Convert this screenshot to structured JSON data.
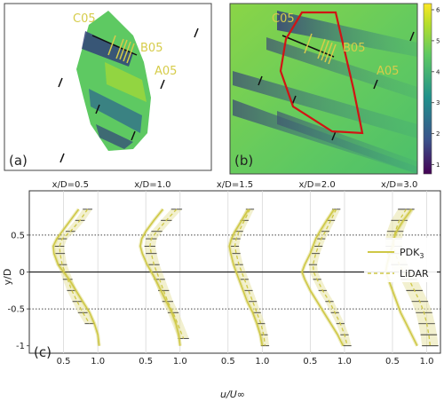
{
  "panel_a": {
    "tag": "(a)",
    "labels": [
      "C05",
      "B05",
      "A05"
    ],
    "label_color": "#d6cc4a"
  },
  "panel_b": {
    "tag": "(b)",
    "labels": [
      "C05",
      "B05",
      "A05"
    ],
    "label_color": "#d6cc4a",
    "outline_color": "#d11414",
    "colorbar": {
      "ticks": [
        "1",
        "2",
        "3",
        "4",
        "5",
        "6"
      ],
      "range": [
        0.7,
        6.2
      ],
      "colors": [
        "#440154",
        "#3b528b",
        "#21918c",
        "#5ec962",
        "#b5de2b",
        "#fde725"
      ]
    }
  },
  "panel_c": {
    "tag": "(c)",
    "ylabel": "y/D",
    "xlabel": "u/U∞",
    "yticks": [
      "0.5",
      "0",
      "-0.5",
      "-1"
    ],
    "xtick_labels": [
      "0.5",
      "1.0"
    ],
    "legend": [
      "PDK",
      "LiDAR"
    ],
    "legend_sub": "3"
  },
  "chart_data": {
    "type": "line",
    "xlabel": "u/U∞",
    "ylabel": "y/D",
    "ylim": [
      -1.1,
      1.1
    ],
    "xlim_each": [
      0.0,
      1.2
    ],
    "reference_lines_y": [
      0.5,
      -0.5
    ],
    "series_color": "#cfc846",
    "panels": [
      {
        "title": "x/D=0.5",
        "y": [
          0.85,
          0.7,
          0.55,
          0.45,
          0.35,
          0.25,
          0.1,
          0.0,
          -0.1,
          -0.25,
          -0.4,
          -0.55,
          -0.7,
          -0.85,
          -1.0
        ],
        "pdk": [
          0.72,
          0.6,
          0.48,
          0.4,
          0.35,
          0.36,
          0.42,
          0.5,
          0.58,
          0.68,
          0.78,
          0.88,
          0.95,
          1.0,
          1.02
        ],
        "lidar": [
          0.85,
          0.74,
          0.6,
          0.48,
          0.44,
          0.45,
          0.48,
          0.52,
          0.56,
          0.62,
          0.7,
          0.78,
          0.88
        ],
        "lidar_y": [
          0.85,
          0.7,
          0.55,
          0.45,
          0.35,
          0.25,
          0.1,
          0.0,
          -0.1,
          -0.25,
          -0.4,
          -0.55,
          -0.7
        ],
        "band": 0.07
      },
      {
        "title": "x/D=1.0",
        "y": [
          0.85,
          0.7,
          0.55,
          0.45,
          0.35,
          0.25,
          0.1,
          0.0,
          -0.1,
          -0.25,
          -0.4,
          -0.55,
          -0.7,
          -0.85,
          -1.0
        ],
        "pdk": [
          0.75,
          0.62,
          0.5,
          0.44,
          0.42,
          0.45,
          0.52,
          0.58,
          0.64,
          0.72,
          0.8,
          0.88,
          0.94,
          0.98,
          1.0
        ],
        "lidar": [
          0.95,
          0.8,
          0.66,
          0.58,
          0.56,
          0.58,
          0.62,
          0.66,
          0.7,
          0.76,
          0.82,
          0.9,
          1.05
        ],
        "lidar_y": [
          0.85,
          0.7,
          0.55,
          0.45,
          0.35,
          0.25,
          0.1,
          0.0,
          -0.1,
          -0.25,
          -0.4,
          -0.55,
          -0.9
        ],
        "band": 0.08
      },
      {
        "title": "x/D=1.5",
        "y": [
          0.85,
          0.7,
          0.55,
          0.45,
          0.35,
          0.25,
          0.1,
          0.0,
          -0.1,
          -0.25,
          -0.4,
          -0.55,
          -0.7,
          -0.85,
          -1.0
        ],
        "pdk": [
          0.8,
          0.7,
          0.6,
          0.55,
          0.52,
          0.54,
          0.58,
          0.62,
          0.66,
          0.72,
          0.78,
          0.86,
          0.92,
          0.97,
          1.0
        ],
        "lidar": [
          0.82,
          0.74,
          0.66,
          0.62,
          0.6,
          0.62,
          0.66,
          0.7,
          0.74,
          0.8,
          0.86,
          0.92,
          0.98,
          1.02,
          1.04
        ],
        "lidar_y": [
          0.85,
          0.7,
          0.55,
          0.45,
          0.35,
          0.25,
          0.1,
          0.0,
          -0.1,
          -0.25,
          -0.4,
          -0.55,
          -0.7,
          -0.85,
          -1.0
        ],
        "band": 0.06
      },
      {
        "title": "x/D=2.0",
        "y": [
          0.85,
          0.7,
          0.55,
          0.45,
          0.35,
          0.25,
          0.1,
          0.0,
          -0.1,
          -0.25,
          -0.4,
          -0.55,
          -0.7,
          -0.85,
          -1.0
        ],
        "pdk": [
          0.85,
          0.74,
          0.64,
          0.58,
          0.54,
          0.5,
          0.42,
          0.38,
          0.42,
          0.5,
          0.6,
          0.7,
          0.8,
          0.9,
          0.98
        ],
        "lidar": [
          0.88,
          0.8,
          0.72,
          0.66,
          0.62,
          0.58,
          0.54,
          0.55,
          0.6,
          0.68,
          0.78,
          0.86,
          0.94,
          1.0,
          1.04
        ],
        "lidar_y": [
          0.85,
          0.7,
          0.55,
          0.45,
          0.35,
          0.25,
          0.1,
          0.0,
          -0.1,
          -0.25,
          -0.4,
          -0.55,
          -0.7,
          -0.85,
          -1.0
        ],
        "band": 0.06
      },
      {
        "title": "x/D=3.0",
        "y": [
          0.85,
          0.7,
          0.55,
          0.45,
          0.35,
          0.25,
          0.1,
          0.0,
          -0.1,
          -0.25,
          -0.4,
          -0.55,
          -0.7,
          -0.85,
          -1.0
        ],
        "pdk": [
          0.78,
          0.66,
          0.56,
          0.52,
          0.5,
          0.46,
          0.42,
          0.4,
          0.44,
          0.5,
          0.56,
          0.62,
          0.7,
          0.78,
          0.86
        ],
        "lidar": [
          0.7,
          0.6,
          0.54,
          0.52,
          0.52,
          0.54,
          0.6,
          0.66,
          0.74,
          0.82,
          0.9,
          0.96,
          1.0,
          1.03,
          1.05
        ],
        "lidar_y": [
          0.85,
          0.7,
          0.55,
          0.45,
          0.35,
          0.25,
          0.1,
          0.0,
          -0.1,
          -0.25,
          -0.4,
          -0.55,
          -0.7,
          -0.85,
          -1.0
        ],
        "band": 0.12
      }
    ]
  }
}
